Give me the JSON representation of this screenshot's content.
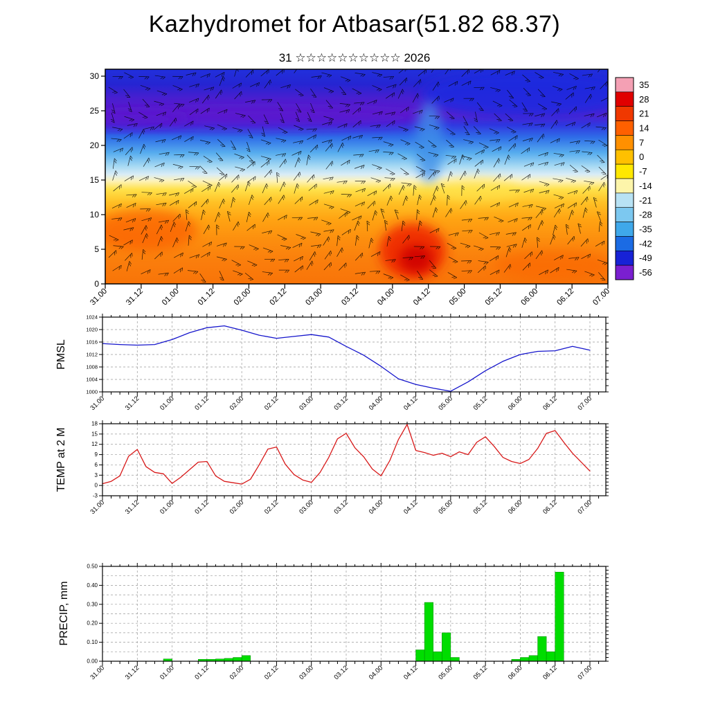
{
  "title": "Kazhydromet for Atbasar(51.82 68.37)",
  "subtitle": "31 ☆☆☆☆☆☆☆☆☆☆ 2026",
  "time_axis": {
    "tick_labels": [
      "31.00",
      "31.12",
      "01.00",
      "01.12",
      "02.00",
      "02.12",
      "03.00",
      "03.12",
      "04.00",
      "04.12",
      "05.00",
      "05.12",
      "06.00",
      "06.12",
      "07.00"
    ],
    "hours_span": 168,
    "major_step_hours": 12,
    "minor_step_hours": 3
  },
  "chart_data": [
    {
      "type": "heatmap",
      "name": "temperature-height cross-section with wind barbs",
      "ylim": [
        0,
        31
      ],
      "ytick_values": [
        0,
        5,
        10,
        15,
        20,
        25,
        30
      ],
      "ytick_labels": [
        "0",
        "5",
        "10",
        "15",
        "20",
        "25",
        "30"
      ],
      "colorbar": {
        "labels": [
          "35",
          "28",
          "21",
          "14",
          "7",
          "0",
          "-7",
          "-14",
          "-21",
          "-28",
          "-35",
          "-42",
          "-49",
          "-56"
        ],
        "colors": [
          "#f4a0b4",
          "#e00000",
          "#f03800",
          "#ff6000",
          "#ff9000",
          "#ffc000",
          "#ffe800",
          "#fdf5aa",
          "#b8e2f4",
          "#7cc8f0",
          "#3fa8ea",
          "#1b6be4",
          "#1722d6",
          "#7a1fd0"
        ]
      },
      "field_gradient": [
        [
          0,
          "#2130dc"
        ],
        [
          0.07,
          "#2525d2"
        ],
        [
          0.14,
          "#4b1ecf"
        ],
        [
          0.21,
          "#5a1fce"
        ],
        [
          0.26,
          "#3038e0"
        ],
        [
          0.32,
          "#2f6fe8"
        ],
        [
          0.39,
          "#57adee"
        ],
        [
          0.45,
          "#a4d8f3"
        ],
        [
          0.49,
          "#d9ecf6"
        ],
        [
          0.52,
          "#fdf3bb"
        ],
        [
          0.56,
          "#ffe14a"
        ],
        [
          0.62,
          "#ffc125"
        ],
        [
          0.7,
          "#ffa312"
        ],
        [
          0.8,
          "#fc8d0e"
        ],
        [
          0.9,
          "#fa7d0c"
        ],
        [
          1,
          "#f87408"
        ]
      ]
    },
    {
      "type": "line",
      "ylabel": "PMSL",
      "color": "#1515cc",
      "ylim": [
        1000,
        1024
      ],
      "ytick_values": [
        1000,
        1004,
        1008,
        1012,
        1016,
        1020,
        1024
      ],
      "ytick_labels": [
        "1000",
        "1004",
        "1008",
        "1012",
        "1016",
        "1020",
        "1024"
      ],
      "x_hours": [
        0,
        6,
        12,
        18,
        24,
        30,
        36,
        42,
        48,
        54,
        60,
        66,
        72,
        78,
        84,
        90,
        96,
        102,
        108,
        114,
        120,
        126,
        132,
        138,
        144,
        150,
        156,
        162,
        168
      ],
      "values": [
        1015.5,
        1015.2,
        1015,
        1015.2,
        1016.8,
        1019,
        1020.6,
        1021.2,
        1019.8,
        1018.2,
        1017.2,
        1017.8,
        1018.4,
        1017.6,
        1014.6,
        1011.8,
        1008.2,
        1004.2,
        1002.4,
        1001.2,
        1000.2,
        1003.2,
        1006.8,
        1009.8,
        1012,
        1013,
        1013.2,
        1014.6,
        1013.4
      ]
    },
    {
      "type": "line",
      "ylabel": "TEMP at 2 M",
      "color": "#d81818",
      "ylim": [
        -3,
        18
      ],
      "ytick_values": [
        -3,
        0,
        3,
        6,
        9,
        12,
        15,
        18
      ],
      "ytick_labels": [
        "-3",
        "0",
        "3",
        "6",
        "9",
        "12",
        "15",
        "18"
      ],
      "x_hours": [
        0,
        3,
        6,
        9,
        12,
        15,
        18,
        21,
        24,
        27,
        30,
        33,
        36,
        39,
        42,
        45,
        48,
        51,
        54,
        57,
        60,
        63,
        66,
        69,
        72,
        75,
        78,
        81,
        84,
        87,
        90,
        93,
        96,
        99,
        102,
        105,
        108,
        111,
        114,
        117,
        120,
        123,
        126,
        129,
        132,
        135,
        138,
        141,
        144,
        147,
        150,
        153,
        156,
        159,
        162,
        165,
        168
      ],
      "values": [
        0.5,
        1.2,
        2.8,
        8.5,
        10.5,
        5.5,
        3.8,
        3.4,
        0.6,
        2.4,
        4.6,
        6.8,
        7.0,
        2.8,
        1.2,
        0.8,
        0.4,
        1.8,
        6.0,
        10.6,
        11.2,
        6.2,
        3.2,
        1.6,
        0.9,
        3.8,
        8.2,
        13.6,
        15.2,
        11.0,
        8.4,
        4.8,
        2.8,
        7.2,
        13.4,
        17.8,
        10.2,
        9.6,
        8.8,
        9.4,
        8.4,
        9.8,
        9.0,
        12.6,
        14.2,
        11.4,
        8.2,
        7.0,
        6.4,
        7.6,
        10.8,
        15.2,
        16.0,
        12.6,
        9.4,
        6.8,
        4.2
      ]
    },
    {
      "type": "bar",
      "ylabel": "PRECIP, mm",
      "color": "#00dd00",
      "ylim": [
        0,
        0.5
      ],
      "grid_step": 0.05,
      "ytick_values": [
        0,
        0.1,
        0.2,
        0.3,
        0.4,
        0.5
      ],
      "ytick_labels": [
        "0.00",
        "0.10",
        "0.20",
        "0.30",
        "0.40",
        "0.50"
      ],
      "bin_hours": 3,
      "bars": [
        [
          21,
          0.012
        ],
        [
          33,
          0.01
        ],
        [
          36,
          0.01
        ],
        [
          39,
          0.012
        ],
        [
          42,
          0.015
        ],
        [
          45,
          0.02
        ],
        [
          48,
          0.03
        ],
        [
          108,
          0.06
        ],
        [
          111,
          0.31
        ],
        [
          114,
          0.05
        ],
        [
          117,
          0.15
        ],
        [
          120,
          0.02
        ],
        [
          141,
          0.01
        ],
        [
          144,
          0.02
        ],
        [
          147,
          0.03
        ],
        [
          150,
          0.13
        ],
        [
          153,
          0.05
        ],
        [
          156,
          0.47
        ]
      ]
    }
  ]
}
